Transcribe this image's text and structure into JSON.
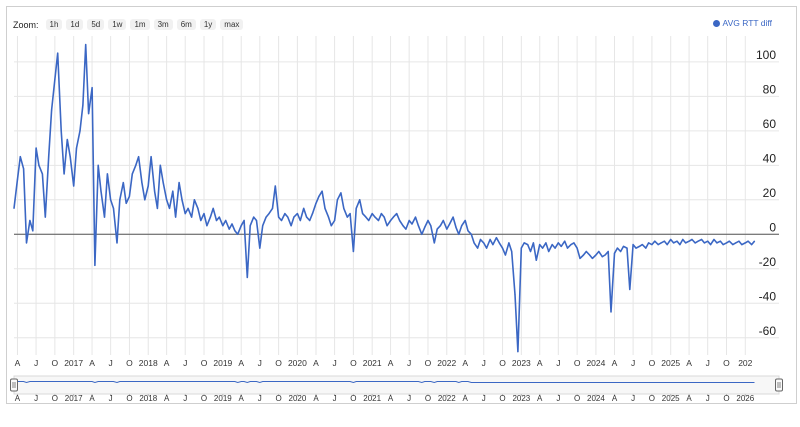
{
  "zoom": {
    "label": "Zoom:",
    "buttons": [
      "1h",
      "1d",
      "5d",
      "1w",
      "1m",
      "3m",
      "6m",
      "1y",
      "max"
    ]
  },
  "colors": {
    "series": "#3b67c4",
    "grid": "#e6e6e6",
    "zero": "#555555"
  },
  "chart_data": {
    "type": "line",
    "title": "",
    "xlabel": "",
    "ylabel": "",
    "ylim": [
      -70,
      115
    ],
    "y_ticks": [
      100,
      80,
      60,
      40,
      20,
      0,
      -20,
      -40,
      -60
    ],
    "grid": true,
    "legend_position": "top-right",
    "x_range": [
      "2016-03-15",
      "2026-06-15"
    ],
    "x_ticks": [
      "A",
      "J",
      "O",
      "2017",
      "A",
      "J",
      "O",
      "2018",
      "A",
      "J",
      "O",
      "2019",
      "A",
      "J",
      "O",
      "2020",
      "A",
      "J",
      "O",
      "2021",
      "A",
      "J",
      "O",
      "2022",
      "A",
      "J",
      "O",
      "2023",
      "A",
      "J",
      "O",
      "2024",
      "A",
      "J",
      "O",
      "2025",
      "A",
      "J",
      "O",
      "202"
    ],
    "navigator_ticks": [
      "A",
      "J",
      "O",
      "2017",
      "A",
      "J",
      "O",
      "2018",
      "A",
      "J",
      "O",
      "2019",
      "A",
      "J",
      "O",
      "2020",
      "A",
      "J",
      "O",
      "2021",
      "A",
      "J",
      "O",
      "2022",
      "A",
      "J",
      "O",
      "2023",
      "A",
      "J",
      "O",
      "2024",
      "A",
      "J",
      "O",
      "2025",
      "A",
      "J",
      "O",
      "2026"
    ],
    "series": [
      {
        "name": "AVG RTT diff",
        "points": [
          [
            "2016-03-15",
            15
          ],
          [
            "2016-04-01",
            32
          ],
          [
            "2016-04-15",
            45
          ],
          [
            "2016-05-01",
            38
          ],
          [
            "2016-05-15",
            -5
          ],
          [
            "2016-06-01",
            8
          ],
          [
            "2016-06-15",
            2
          ],
          [
            "2016-07-01",
            50
          ],
          [
            "2016-07-15",
            40
          ],
          [
            "2016-08-01",
            35
          ],
          [
            "2016-08-15",
            10
          ],
          [
            "2016-09-01",
            45
          ],
          [
            "2016-09-15",
            72
          ],
          [
            "2016-10-01",
            90
          ],
          [
            "2016-10-15",
            105
          ],
          [
            "2016-11-01",
            60
          ],
          [
            "2016-11-15",
            35
          ],
          [
            "2016-12-01",
            55
          ],
          [
            "2016-12-15",
            45
          ],
          [
            "2017-01-01",
            28
          ],
          [
            "2017-01-15",
            50
          ],
          [
            "2017-02-01",
            60
          ],
          [
            "2017-02-15",
            75
          ],
          [
            "2017-03-01",
            110
          ],
          [
            "2017-03-15",
            70
          ],
          [
            "2017-04-01",
            85
          ],
          [
            "2017-04-15",
            -18
          ],
          [
            "2017-05-01",
            40
          ],
          [
            "2017-05-15",
            25
          ],
          [
            "2017-06-01",
            10
          ],
          [
            "2017-06-15",
            35
          ],
          [
            "2017-07-01",
            20
          ],
          [
            "2017-07-15",
            15
          ],
          [
            "2017-08-01",
            -5
          ],
          [
            "2017-08-15",
            20
          ],
          [
            "2017-09-01",
            30
          ],
          [
            "2017-09-15",
            18
          ],
          [
            "2017-10-01",
            22
          ],
          [
            "2017-10-15",
            35
          ],
          [
            "2017-11-01",
            40
          ],
          [
            "2017-11-15",
            45
          ],
          [
            "2017-12-01",
            30
          ],
          [
            "2017-12-15",
            20
          ],
          [
            "2018-01-01",
            28
          ],
          [
            "2018-01-15",
            45
          ],
          [
            "2018-02-01",
            25
          ],
          [
            "2018-02-15",
            15
          ],
          [
            "2018-03-01",
            40
          ],
          [
            "2018-03-15",
            30
          ],
          [
            "2018-04-01",
            20
          ],
          [
            "2018-04-15",
            15
          ],
          [
            "2018-05-01",
            25
          ],
          [
            "2018-05-15",
            10
          ],
          [
            "2018-06-01",
            30
          ],
          [
            "2018-06-15",
            20
          ],
          [
            "2018-07-01",
            12
          ],
          [
            "2018-07-15",
            15
          ],
          [
            "2018-08-01",
            10
          ],
          [
            "2018-08-15",
            20
          ],
          [
            "2018-09-01",
            15
          ],
          [
            "2018-09-15",
            8
          ],
          [
            "2018-10-01",
            12
          ],
          [
            "2018-10-15",
            5
          ],
          [
            "2018-11-01",
            10
          ],
          [
            "2018-11-15",
            15
          ],
          [
            "2018-12-01",
            8
          ],
          [
            "2018-12-15",
            10
          ],
          [
            "2019-01-01",
            5
          ],
          [
            "2019-01-15",
            8
          ],
          [
            "2019-02-01",
            3
          ],
          [
            "2019-02-15",
            6
          ],
          [
            "2019-03-01",
            2
          ],
          [
            "2019-03-15",
            0
          ],
          [
            "2019-04-01",
            5
          ],
          [
            "2019-04-15",
            8
          ],
          [
            "2019-05-01",
            -25
          ],
          [
            "2019-05-15",
            5
          ],
          [
            "2019-06-01",
            10
          ],
          [
            "2019-06-15",
            8
          ],
          [
            "2019-07-01",
            -8
          ],
          [
            "2019-07-15",
            5
          ],
          [
            "2019-08-01",
            10
          ],
          [
            "2019-08-15",
            12
          ],
          [
            "2019-09-01",
            15
          ],
          [
            "2019-09-15",
            28
          ],
          [
            "2019-10-01",
            10
          ],
          [
            "2019-10-15",
            8
          ],
          [
            "2019-11-01",
            12
          ],
          [
            "2019-11-15",
            10
          ],
          [
            "2019-12-01",
            5
          ],
          [
            "2019-12-15",
            10
          ],
          [
            "2020-01-01",
            12
          ],
          [
            "2020-01-15",
            8
          ],
          [
            "2020-02-01",
            15
          ],
          [
            "2020-02-15",
            10
          ],
          [
            "2020-03-01",
            8
          ],
          [
            "2020-03-15",
            12
          ],
          [
            "2020-04-01",
            18
          ],
          [
            "2020-04-15",
            22
          ],
          [
            "2020-05-01",
            25
          ],
          [
            "2020-05-15",
            15
          ],
          [
            "2020-06-01",
            10
          ],
          [
            "2020-06-15",
            5
          ],
          [
            "2020-07-01",
            8
          ],
          [
            "2020-07-15",
            20
          ],
          [
            "2020-08-01",
            24
          ],
          [
            "2020-08-15",
            15
          ],
          [
            "2020-09-01",
            10
          ],
          [
            "2020-09-15",
            12
          ],
          [
            "2020-10-01",
            -10
          ],
          [
            "2020-10-15",
            15
          ],
          [
            "2020-11-01",
            20
          ],
          [
            "2020-11-15",
            12
          ],
          [
            "2020-12-01",
            10
          ],
          [
            "2020-12-15",
            8
          ],
          [
            "2021-01-01",
            12
          ],
          [
            "2021-01-15",
            10
          ],
          [
            "2021-02-01",
            8
          ],
          [
            "2021-02-15",
            12
          ],
          [
            "2021-03-01",
            10
          ],
          [
            "2021-03-15",
            5
          ],
          [
            "2021-04-01",
            8
          ],
          [
            "2021-04-15",
            10
          ],
          [
            "2021-05-01",
            12
          ],
          [
            "2021-05-15",
            8
          ],
          [
            "2021-06-01",
            5
          ],
          [
            "2021-06-15",
            3
          ],
          [
            "2021-07-01",
            8
          ],
          [
            "2021-07-15",
            6
          ],
          [
            "2021-08-01",
            10
          ],
          [
            "2021-08-15",
            5
          ],
          [
            "2021-09-01",
            0
          ],
          [
            "2021-09-15",
            4
          ],
          [
            "2021-10-01",
            8
          ],
          [
            "2021-10-15",
            5
          ],
          [
            "2021-11-01",
            -5
          ],
          [
            "2021-11-15",
            3
          ],
          [
            "2021-12-01",
            5
          ],
          [
            "2021-12-15",
            8
          ],
          [
            "2022-01-01",
            3
          ],
          [
            "2022-01-15",
            6
          ],
          [
            "2022-02-01",
            10
          ],
          [
            "2022-02-15",
            4
          ],
          [
            "2022-03-01",
            0
          ],
          [
            "2022-03-15",
            5
          ],
          [
            "2022-04-01",
            8
          ],
          [
            "2022-04-15",
            2
          ],
          [
            "2022-05-01",
            0
          ],
          [
            "2022-05-15",
            -5
          ],
          [
            "2022-06-01",
            -8
          ],
          [
            "2022-06-15",
            -3
          ],
          [
            "2022-07-01",
            -5
          ],
          [
            "2022-07-15",
            -8
          ],
          [
            "2022-08-01",
            -3
          ],
          [
            "2022-08-15",
            -6
          ],
          [
            "2022-09-01",
            -2
          ],
          [
            "2022-09-15",
            -5
          ],
          [
            "2022-10-01",
            -8
          ],
          [
            "2022-10-15",
            -12
          ],
          [
            "2022-11-01",
            -5
          ],
          [
            "2022-11-15",
            -10
          ],
          [
            "2022-12-01",
            -35
          ],
          [
            "2022-12-15",
            -68
          ],
          [
            "2023-01-01",
            -8
          ],
          [
            "2023-01-15",
            -5
          ],
          [
            "2023-02-01",
            -6
          ],
          [
            "2023-02-15",
            -10
          ],
          [
            "2023-03-01",
            -5
          ],
          [
            "2023-03-15",
            -15
          ],
          [
            "2023-04-01",
            -6
          ],
          [
            "2023-04-15",
            -8
          ],
          [
            "2023-05-01",
            -5
          ],
          [
            "2023-05-15",
            -10
          ],
          [
            "2023-06-01",
            -6
          ],
          [
            "2023-06-15",
            -8
          ],
          [
            "2023-07-01",
            -5
          ],
          [
            "2023-07-15",
            -7
          ],
          [
            "2023-08-01",
            -4
          ],
          [
            "2023-08-15",
            -8
          ],
          [
            "2023-09-01",
            -6
          ],
          [
            "2023-09-15",
            -5
          ],
          [
            "2023-10-01",
            -8
          ],
          [
            "2023-10-15",
            -14
          ],
          [
            "2023-11-01",
            -12
          ],
          [
            "2023-11-15",
            -10
          ],
          [
            "2023-12-01",
            -12
          ],
          [
            "2023-12-15",
            -14
          ],
          [
            "2024-01-01",
            -12
          ],
          [
            "2024-01-15",
            -10
          ],
          [
            "2024-02-01",
            -13
          ],
          [
            "2024-02-15",
            -12
          ],
          [
            "2024-03-01",
            -10
          ],
          [
            "2024-03-15",
            -45
          ],
          [
            "2024-04-01",
            -11
          ],
          [
            "2024-04-15",
            -8
          ],
          [
            "2024-05-01",
            -10
          ],
          [
            "2024-05-15",
            -7
          ],
          [
            "2024-06-01",
            -8
          ],
          [
            "2024-06-15",
            -32
          ],
          [
            "2024-07-01",
            -6
          ],
          [
            "2024-07-15",
            -8
          ],
          [
            "2024-08-01",
            -7
          ],
          [
            "2024-08-15",
            -6
          ],
          [
            "2024-09-01",
            -8
          ],
          [
            "2024-09-15",
            -5
          ],
          [
            "2024-10-01",
            -6
          ],
          [
            "2024-10-15",
            -4
          ],
          [
            "2024-11-01",
            -6
          ],
          [
            "2024-11-15",
            -5
          ],
          [
            "2024-12-01",
            -4
          ],
          [
            "2024-12-15",
            -6
          ],
          [
            "2025-01-01",
            -3
          ],
          [
            "2025-01-15",
            -5
          ],
          [
            "2025-02-01",
            -4
          ],
          [
            "2025-02-15",
            -6
          ],
          [
            "2025-03-01",
            -3
          ],
          [
            "2025-03-15",
            -5
          ],
          [
            "2025-04-01",
            -4
          ],
          [
            "2025-04-15",
            -3
          ],
          [
            "2025-05-01",
            -5
          ],
          [
            "2025-05-15",
            -4
          ],
          [
            "2025-06-01",
            -3
          ],
          [
            "2025-06-15",
            -5
          ],
          [
            "2025-07-01",
            -4
          ],
          [
            "2025-07-15",
            -6
          ],
          [
            "2025-08-01",
            -3
          ],
          [
            "2025-08-15",
            -5
          ],
          [
            "2025-09-01",
            -4
          ],
          [
            "2025-09-15",
            -6
          ],
          [
            "2025-10-01",
            -5
          ],
          [
            "2025-10-15",
            -4
          ],
          [
            "2025-11-01",
            -6
          ],
          [
            "2025-11-15",
            -5
          ],
          [
            "2025-12-01",
            -4
          ],
          [
            "2025-12-15",
            -6
          ],
          [
            "2026-01-01",
            -5
          ],
          [
            "2026-01-15",
            -4
          ],
          [
            "2026-02-01",
            -6
          ],
          [
            "2026-02-15",
            -4
          ]
        ]
      }
    ]
  }
}
